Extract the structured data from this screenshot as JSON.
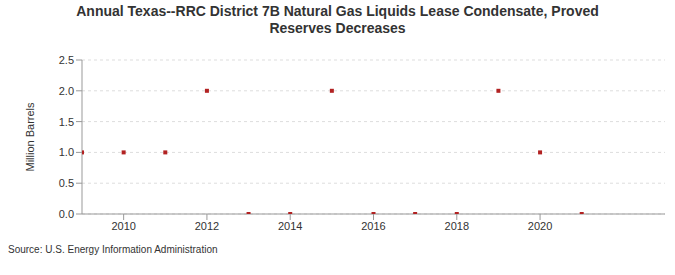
{
  "chart_data": {
    "type": "scatter",
    "title": "Annual Texas--RRC District 7B Natural Gas Liquids Lease Condensate, Proved Reserves Decreases",
    "y_label": "Million Barrels",
    "source": "Source: U.S. Energy Information Administration",
    "x": [
      2009,
      2010,
      2011,
      2012,
      2013,
      2014,
      2015,
      2016,
      2017,
      2018,
      2019,
      2020,
      2021
    ],
    "values": [
      1,
      1,
      1,
      2,
      0,
      0,
      2,
      0,
      0,
      0,
      2,
      1,
      0
    ],
    "color": "#b22222",
    "marker": "square",
    "xlim": [
      2009,
      2023
    ],
    "xticks": [
      2010,
      2012,
      2014,
      2016,
      2018,
      2020
    ],
    "ylim": [
      0,
      2.5
    ],
    "yticks": [
      {
        "value": 0,
        "label": "0.0"
      },
      {
        "value": 0.5,
        "label": "0.5"
      },
      {
        "value": 1,
        "label": "1.0"
      },
      {
        "value": 1.5,
        "label": "1.5"
      },
      {
        "value": 2,
        "label": "2.0"
      },
      {
        "value": 2.5,
        "label": "2.5"
      }
    ],
    "grid": true
  }
}
